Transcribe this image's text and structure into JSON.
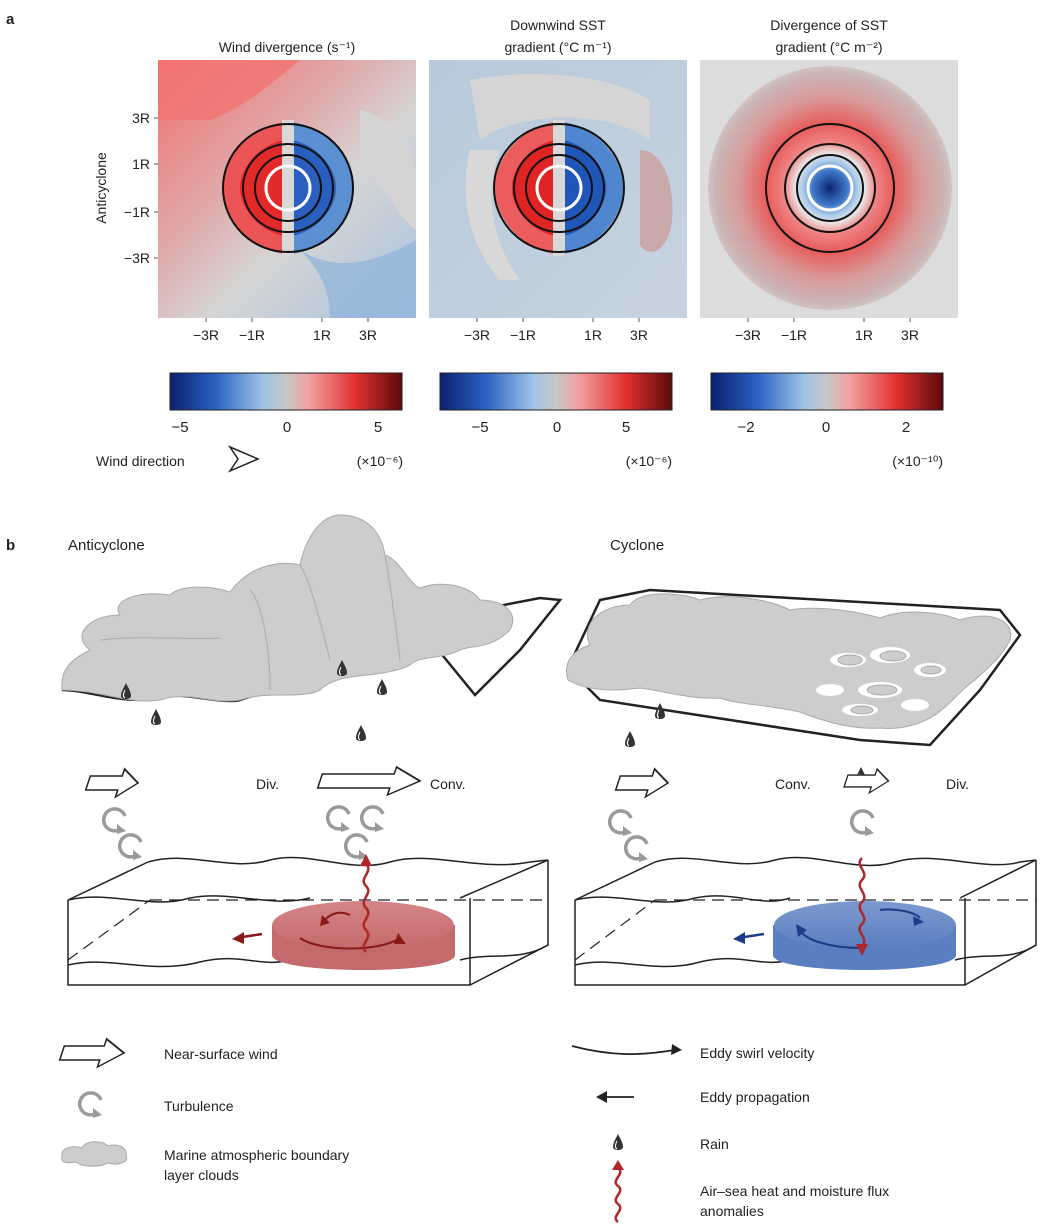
{
  "panel_a": {
    "label": "a",
    "row_label": "Anticyclone",
    "maps": [
      {
        "title_lines": [
          "Wind divergence (s⁻¹)"
        ],
        "colorbar_ticks": [
          "−5",
          "0",
          "5"
        ],
        "multiplier": "(×10⁻⁶)",
        "range": 6
      },
      {
        "title_lines": [
          "Downwind SST",
          "gradient (°C m⁻¹)"
        ],
        "colorbar_ticks": [
          "−5",
          "0",
          "5"
        ],
        "multiplier": "(×10⁻⁶)",
        "range": 8
      },
      {
        "title_lines": [
          "Divergence of SST",
          "gradient (°C m⁻²)"
        ],
        "colorbar_ticks": [
          "−2",
          "0",
          "2"
        ],
        "multiplier": "(×10⁻¹⁰)",
        "range": 3
      }
    ],
    "x_ticks": [
      "−3R",
      "−1R",
      "1R",
      "3R"
    ],
    "y_ticks": [
      "3R",
      "1R",
      "−1R",
      "−3R"
    ],
    "wind_direction_label": "Wind direction"
  },
  "panel_b": {
    "label": "b",
    "anticyclone": {
      "title": "Anticyclone",
      "div_label": "Div.",
      "conv_label": "Conv.",
      "eddy_color": "#c9797a"
    },
    "cyclone": {
      "title": "Cyclone",
      "conv_label": "Conv.",
      "div_label": "Div.",
      "eddy_color": "#6f8ec6"
    }
  },
  "legend": {
    "near_surface_wind": "Near-surface wind",
    "turbulence": "Turbulence",
    "clouds_line1": "Marine atmospheric boundary",
    "clouds_line2": "layer clouds",
    "eddy_swirl": "Eddy swirl velocity",
    "eddy_propagation": "Eddy propagation",
    "rain": "Rain",
    "flux_line1": "Air–sea heat and moisture flux",
    "flux_line2": "anomalies"
  },
  "colors": {
    "warm": "#d62a2a",
    "cold": "#1f5fb5",
    "neutral": "#d8d8d8",
    "cloud": "#cdcdcd",
    "flux": "#b0262a"
  }
}
